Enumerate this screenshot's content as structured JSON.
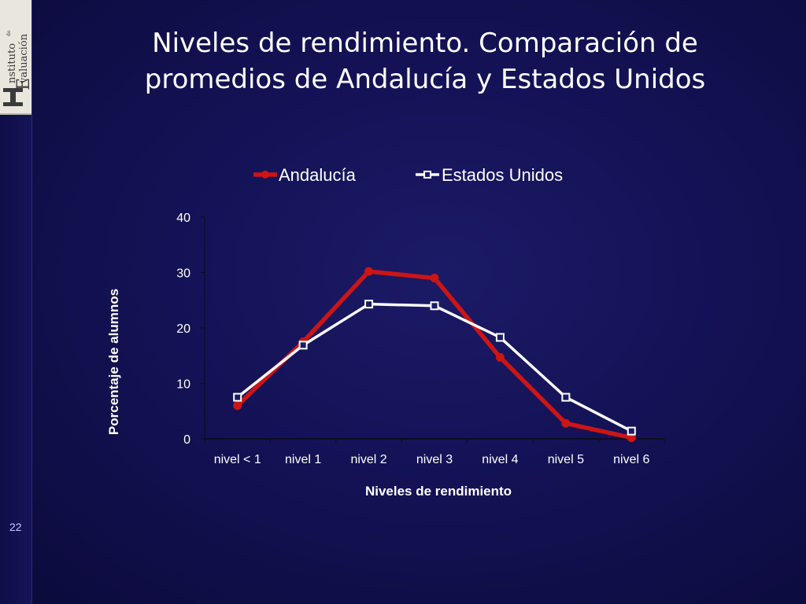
{
  "slide": {
    "title_line1": "Niveles de rendimiento. Comparación de",
    "title_line2": "promedios de Andalucía y Estados Unidos",
    "number": "22",
    "logo_text": "Instituto de Evaluación"
  },
  "colors": {
    "andalucia": "#cc1515",
    "estados_unidos": "#ffffff",
    "axis": "#0d0d0d"
  },
  "chart_data": {
    "type": "line",
    "categories": [
      "nivel < 1",
      "nivel 1",
      "nivel 2",
      "nivel 3",
      "nivel 4",
      "nivel 5",
      "nivel 6"
    ],
    "series": [
      {
        "name": "Andalucía",
        "marker": "filled-circle",
        "values": [
          6,
          17.5,
          30.2,
          29,
          14.7,
          2.8,
          0.2
        ]
      },
      {
        "name": "Estados Unidos",
        "marker": "open-square",
        "values": [
          7.5,
          16.9,
          24.3,
          24,
          18.3,
          7.5,
          1.4
        ]
      }
    ],
    "ylim": [
      0,
      40
    ],
    "yticks": [
      0,
      10,
      20,
      30,
      40
    ],
    "xlabel": "Niveles de rendimiento",
    "ylabel": "Porcentaje de alumnos",
    "legend_position": "top",
    "grid": false
  }
}
